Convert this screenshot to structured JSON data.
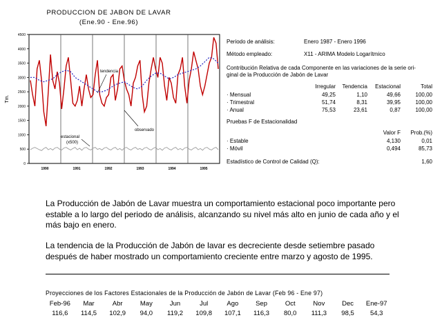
{
  "chart": {
    "title": "PRODUCCION DE JABON DE LAVAR",
    "subtitle": "(Ene.90 - Ene.96)",
    "ylabel": "Tm.",
    "yticks": [
      "4500",
      "4000",
      "3500",
      "3000",
      "2500",
      "2000",
      "1500",
      "1000",
      "500",
      "0"
    ],
    "xticks": [
      "1990",
      "1991",
      "1992",
      "1993",
      "1994",
      "1995"
    ],
    "label_tendencia": "tendencia",
    "label_observado": "observado",
    "label_estacional_1": "estacional",
    "label_estacional_2": "(x500)",
    "colors": {
      "observado": "#c00000",
      "tendencia": "#1f1fbf",
      "estacional": "#9a9a9a"
    }
  },
  "chart_data": {
    "type": "line",
    "x_range": [
      "1990-01",
      "1996-01"
    ],
    "ylim": [
      0,
      4500
    ],
    "series": [
      {
        "name": "observado",
        "values": [
          2900,
          2400,
          2000,
          3300,
          3600,
          2900,
          1800,
          1300,
          2500,
          3800,
          2900,
          2600,
          3200,
          2800,
          1900,
          2600,
          3400,
          3700,
          2900,
          2100,
          2000,
          2200,
          2700,
          2000,
          2600,
          3100,
          2600,
          2300,
          2400,
          3100,
          3600,
          2400,
          2100,
          2000,
          2300,
          2400,
          3000,
          3100,
          2200,
          2600,
          3300,
          3400,
          2900,
          2600,
          2400,
          2000,
          2800,
          3000,
          3400,
          3600,
          2400,
          1800,
          2000,
          2800,
          3300,
          3700,
          3300,
          3000,
          3700,
          3500,
          2700,
          2200,
          3000,
          2800,
          2300,
          2100,
          3100,
          3300,
          3700,
          2700,
          2100,
          2900,
          3300,
          3900,
          3600,
          3300,
          2700,
          2400,
          2700,
          3100,
          3500,
          3700,
          4400,
          4200,
          3300
        ]
      },
      {
        "name": "tendencia",
        "values": [
          3000,
          3000,
          2900,
          2850,
          2900,
          2950,
          3100,
          3200,
          3250,
          3200,
          3000,
          2900,
          2800,
          2700,
          2600,
          2500,
          2500,
          2550,
          2650,
          2750,
          2800,
          2850,
          2750,
          2650,
          2600,
          2700,
          2900,
          3050,
          3150,
          3150,
          3050,
          2950,
          3000,
          3100,
          3150,
          3200,
          3250,
          3300,
          3400,
          3550,
          3700,
          3650,
          3500
        ]
      },
      {
        "name": "estacional",
        "values": [
          480,
          530,
          560,
          520,
          480,
          450,
          520,
          560,
          480,
          520,
          470,
          540,
          560,
          500,
          470,
          540,
          560,
          510,
          470,
          520,
          560,
          480,
          530,
          460,
          540,
          560,
          500,
          470,
          530,
          560,
          490,
          520,
          470,
          540,
          560,
          500,
          470,
          530,
          560,
          480,
          520,
          460,
          540,
          560,
          500,
          470,
          530,
          560,
          490,
          520,
          470,
          540,
          560,
          500,
          470,
          530,
          560,
          480,
          520,
          460,
          540,
          560,
          500,
          470,
          530,
          560,
          480,
          520,
          470,
          540,
          560,
          500,
          470,
          530,
          560,
          480,
          520,
          460,
          540,
          560,
          500,
          470,
          530,
          560,
          480
        ]
      }
    ]
  },
  "info": {
    "periodo_label": "Periodo de análisis:",
    "periodo_value": "Enero 1987 - Enero 1996",
    "metodo_label": "Método empleado:",
    "metodo_value": "X11 - ARIMA Modelo Logarítmico",
    "contrib_line1": "Contribución Relativa de cada Componente en las variaciones de la serie ori-",
    "contrib_line2": "ginal de la Producción de Jabón de Lavar",
    "contrib_headers": [
      "Irregular",
      "Tendencia",
      "Estacional",
      "Total"
    ],
    "contrib_rows": [
      {
        "label": "· Mensual",
        "values": [
          "49,25",
          "1,10",
          "49,66",
          "100,00"
        ]
      },
      {
        "label": "· Trimestral",
        "values": [
          "51,74",
          "8,31",
          "39,95",
          "100,00"
        ]
      },
      {
        "label": "· Anual",
        "values": [
          "75,53",
          "23,61",
          "0,87",
          "100,00"
        ]
      }
    ],
    "pruebas_title": "Pruebas F de Estacionalidad",
    "pruebas_headers": [
      "Valor F",
      "Prob.(%)"
    ],
    "pruebas_rows": [
      {
        "label": "· Estable",
        "values": [
          "4,130",
          "0,01"
        ]
      },
      {
        "label": "· Móvil",
        "values": [
          "0,494",
          "85,73"
        ]
      }
    ],
    "calidad_label": "Estadístico de Control de Calidad (Q):",
    "calidad_value": "1,60"
  },
  "text": {
    "p1": "La Producción de Jabón de Lavar muestra un comportamiento estacional poco importante pero estable a lo largo del periodo de análisis, alcanzando su nivel  más alto en junio de cada año y el más bajo en enero.",
    "p2": "La tendencia de la Producción de Jabón de lavar es decreciente desde setiembre pasado después de haber mostrado un comportamiento creciente entre marzo y agosto de 1995."
  },
  "projections": {
    "title": "Proyecciones de los Factores Estacionales de la Producción de Jabón de Lavar (Feb 96 - Ene 97)",
    "months": [
      "Feb-96",
      "Mar",
      "Abr",
      "May",
      "Jun",
      "Jul",
      "Ago",
      "Sep",
      "Oct",
      "Nov",
      "Dec",
      "Ene-97"
    ],
    "values": [
      "116,6",
      "114,5",
      "102,9",
      "94,0",
      "119,2",
      "109,8",
      "107,1",
      "116,3",
      "80,0",
      "111,3",
      "98,5",
      "54,3"
    ]
  }
}
